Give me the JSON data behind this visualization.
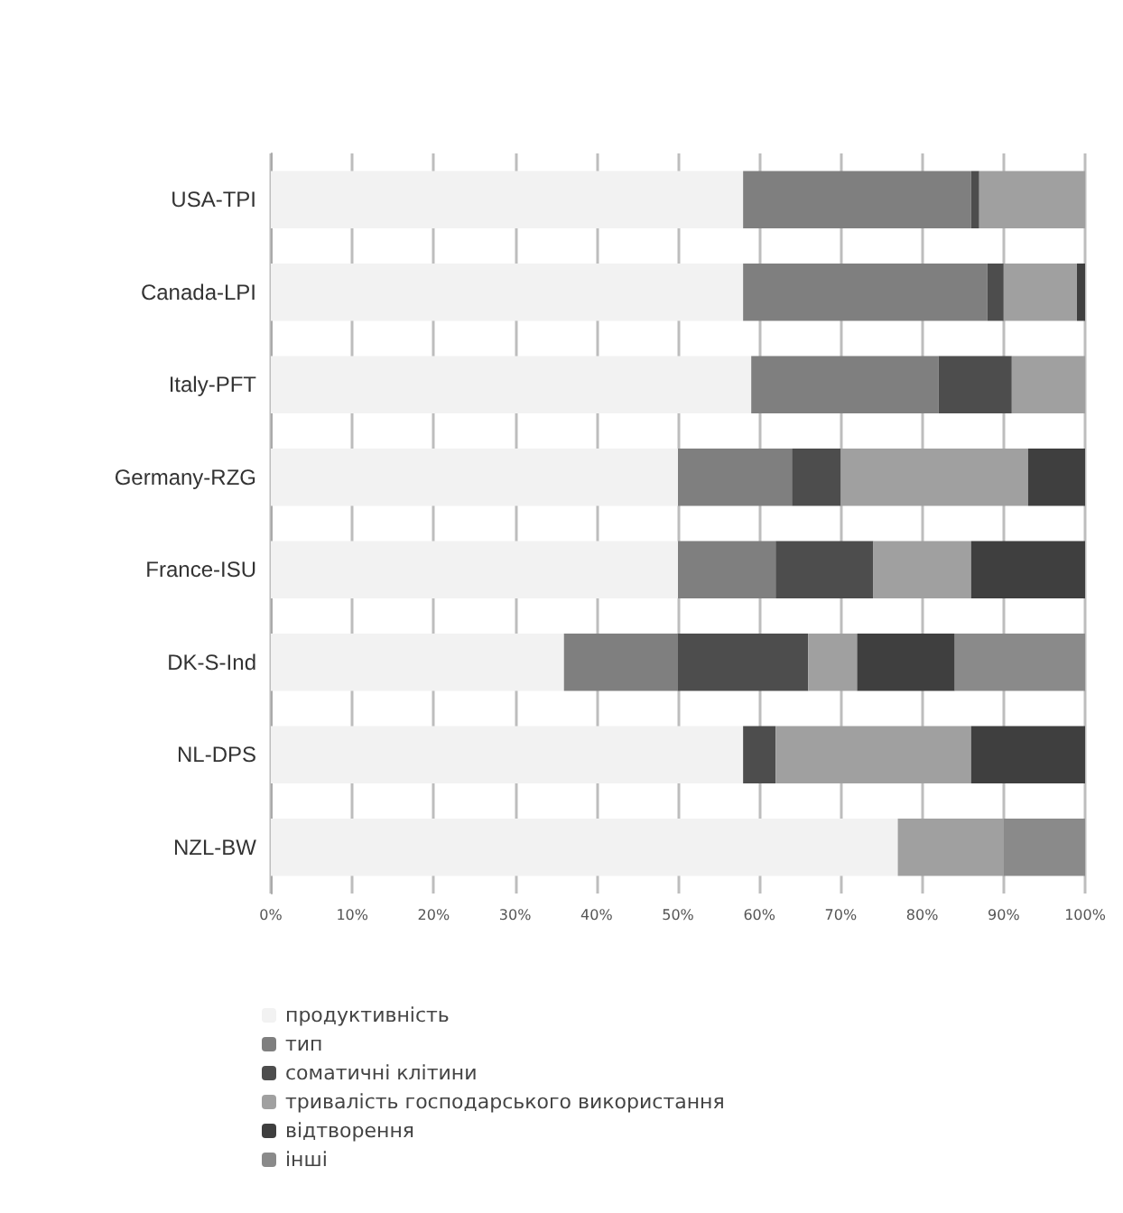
{
  "chart_data": {
    "type": "bar",
    "orientation": "horizontal",
    "stacked": true,
    "categories": [
      "USA-TPI",
      "Canada-LPI",
      "Italy-PFT",
      "Germany-RZG",
      "France-ISU",
      "DK-S-Ind",
      "NL-DPS",
      "NZL-BW"
    ],
    "series": [
      {
        "name": "продуктивність",
        "color": "#f2f2f2",
        "values": [
          58,
          58,
          59,
          50,
          50,
          36,
          58,
          77
        ]
      },
      {
        "name": "тип",
        "color": "#7f7f7f",
        "values": [
          28,
          30,
          23,
          14,
          12,
          14,
          0,
          0
        ]
      },
      {
        "name": "соматичні клітини",
        "color": "#4d4d4d",
        "values": [
          1,
          2,
          9,
          6,
          12,
          16,
          4,
          0
        ]
      },
      {
        "name": "тривалість господарського використання",
        "color": "#a0a0a0",
        "values": [
          13,
          9,
          9,
          23,
          12,
          6,
          24,
          13
        ]
      },
      {
        "name": "відтворення",
        "color": "#3f3f3f",
        "values": [
          0,
          1,
          0,
          7,
          14,
          12,
          14,
          0
        ]
      },
      {
        "name": "інші",
        "color": "#8a8a8a",
        "values": [
          0,
          0,
          0,
          0,
          0,
          16,
          0,
          10
        ]
      }
    ],
    "xlim": [
      0,
      100
    ],
    "xticks": [
      {
        "value": 0,
        "label": "0%"
      },
      {
        "value": 10,
        "label": "10%"
      },
      {
        "value": 20,
        "label": "20%"
      },
      {
        "value": 30,
        "label": "30%"
      },
      {
        "value": 40,
        "label": "40%"
      },
      {
        "value": 50,
        "label": "50%"
      },
      {
        "value": 60,
        "label": "60%"
      },
      {
        "value": 70,
        "label": "70%"
      },
      {
        "value": 80,
        "label": "80%"
      },
      {
        "value": 90,
        "label": "90%"
      },
      {
        "value": 100,
        "label": "100%"
      }
    ],
    "grid": "x",
    "legend": "bottom left"
  }
}
